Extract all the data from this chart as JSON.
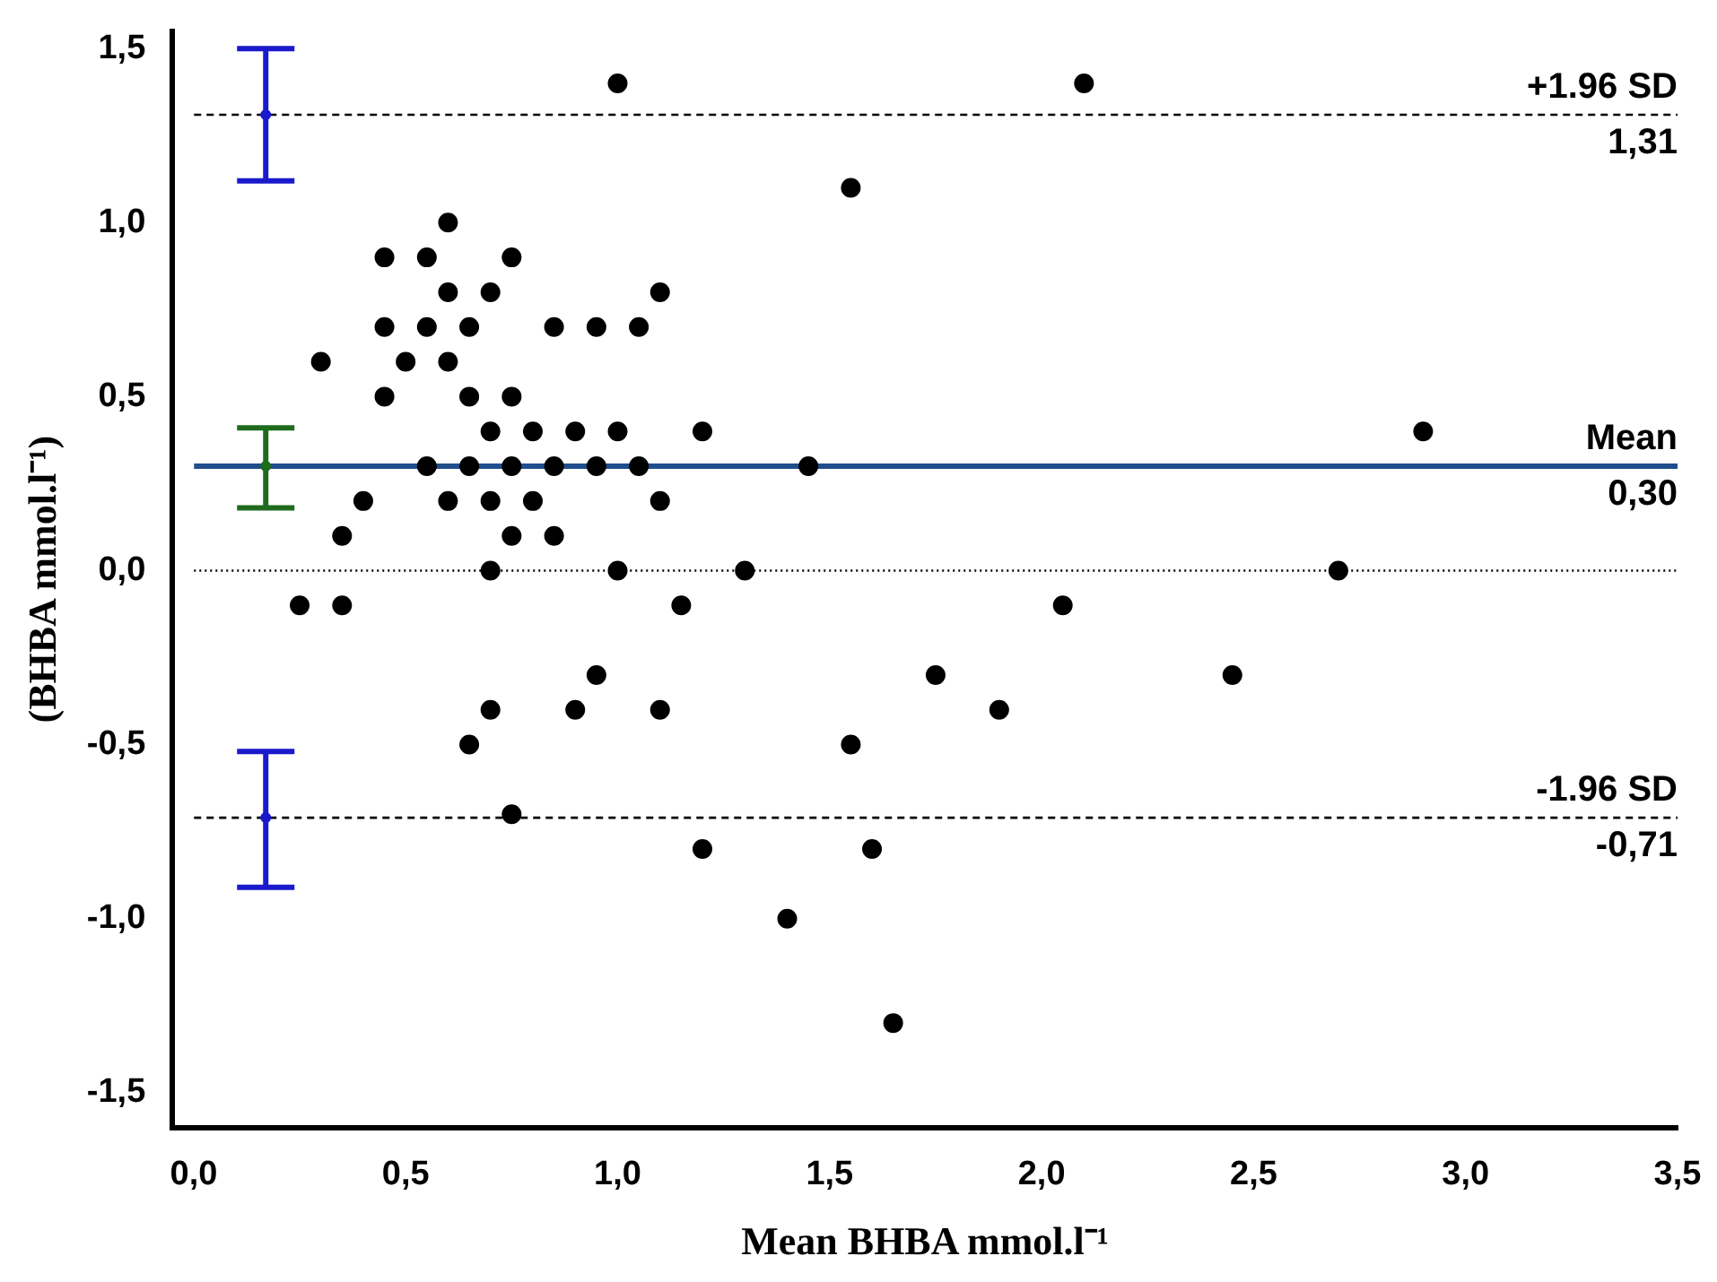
{
  "chart_data": {
    "type": "scatter",
    "xlabel": "Mean BHBA mmol.l⁻¹",
    "ylabel": "(BHBA mmol.l⁻¹)",
    "xlim": [
      -0.05,
      3.5
    ],
    "ylim": [
      -1.6,
      1.55
    ],
    "xticks": [
      {
        "value": 0,
        "label": "0,0"
      },
      {
        "value": 0.5,
        "label": "0,5"
      },
      {
        "value": 1,
        "label": "1,0"
      },
      {
        "value": 1.5,
        "label": "1,5"
      },
      {
        "value": 2,
        "label": "2,0"
      },
      {
        "value": 2.5,
        "label": "2,5"
      },
      {
        "value": 3,
        "label": "3,0"
      },
      {
        "value": 3.5,
        "label": "3,5"
      }
    ],
    "yticks": [
      {
        "value": -1.5,
        "label": "-1,5"
      },
      {
        "value": -1,
        "label": "-1,0"
      },
      {
        "value": -0.5,
        "label": "-0,5"
      },
      {
        "value": 0,
        "label": "0,0"
      },
      {
        "value": 0.5,
        "label": "0,5"
      },
      {
        "value": 1,
        "label": "1,0"
      },
      {
        "value": 1.5,
        "label": "1,5"
      }
    ],
    "grid": false,
    "legend": false,
    "marker": "circle",
    "series": [
      {
        "color": "#000000",
        "x": [
          1.0,
          2.1,
          1.55,
          0.6,
          0.45,
          0.55,
          0.75,
          0.6,
          0.7,
          1.1,
          0.45,
          0.55,
          0.65,
          0.85,
          0.95,
          1.05,
          0.3,
          0.5,
          0.6,
          0.45,
          0.65,
          0.75,
          0.7,
          0.8,
          0.9,
          1.0,
          1.2,
          2.9,
          0.55,
          0.65,
          0.75,
          0.85,
          0.95,
          1.05,
          1.45,
          0.4,
          0.6,
          0.7,
          0.8,
          1.1,
          0.35,
          0.75,
          0.85,
          0.7,
          1.0,
          1.3,
          2.7,
          0.25,
          0.35,
          1.15,
          2.05,
          0.95,
          1.75,
          2.45,
          0.7,
          0.9,
          1.1,
          1.9,
          0.65,
          1.55,
          0.75,
          1.2,
          1.6,
          1.4,
          1.65
        ],
        "values": [
          1.4,
          1.4,
          1.1,
          1.0,
          0.9,
          0.9,
          0.9,
          0.8,
          0.8,
          0.8,
          0.7,
          0.7,
          0.7,
          0.7,
          0.7,
          0.7,
          0.6,
          0.6,
          0.6,
          0.5,
          0.5,
          0.5,
          0.4,
          0.4,
          0.4,
          0.4,
          0.4,
          0.4,
          0.3,
          0.3,
          0.3,
          0.3,
          0.3,
          0.3,
          0.3,
          0.2,
          0.2,
          0.2,
          0.2,
          0.2,
          0.1,
          0.1,
          0.1,
          0,
          0,
          0,
          0,
          -0.1,
          -0.1,
          -0.1,
          -0.1,
          -0.3,
          -0.3,
          -0.3,
          -0.4,
          -0.4,
          -0.4,
          -0.4,
          -0.5,
          -0.5,
          -0.7,
          -0.8,
          -0.8,
          -1.0,
          -1.3
        ]
      },
      {
        "x": [
          0.17,
          0.17,
          0.17
        ],
        "values": [
          1.31,
          0.3,
          -0.71
        ],
        "errors": [
          [
            1.12,
            1.5
          ],
          [
            0.18,
            0.41
          ],
          [
            -0.91,
            -0.52
          ]
        ],
        "colors": [
          "#1a1acc",
          "#1e6b1e",
          "#1a1acc"
        ]
      }
    ],
    "ref_lines": [
      {
        "axis": "y",
        "value": 1.31,
        "label": "+1.96 SD",
        "line_style": "dashed",
        "color": "#000000"
      },
      {
        "axis": "y",
        "value": 0.3,
        "label": "Mean",
        "line_style": "solid",
        "color": "#1f4e8c"
      },
      {
        "axis": "y",
        "value": -0.71,
        "label": "-1.96 SD",
        "line_style": "dashed",
        "color": "#000000"
      },
      {
        "axis": "y",
        "value": 0,
        "line_style": "dotted",
        "color": "#000000"
      }
    ],
    "annotations": [
      {
        "text": "1,31",
        "y": 1.31
      },
      {
        "text": "0,30",
        "y": 0.3
      },
      {
        "text": "-0,71",
        "y": -0.71
      }
    ]
  }
}
